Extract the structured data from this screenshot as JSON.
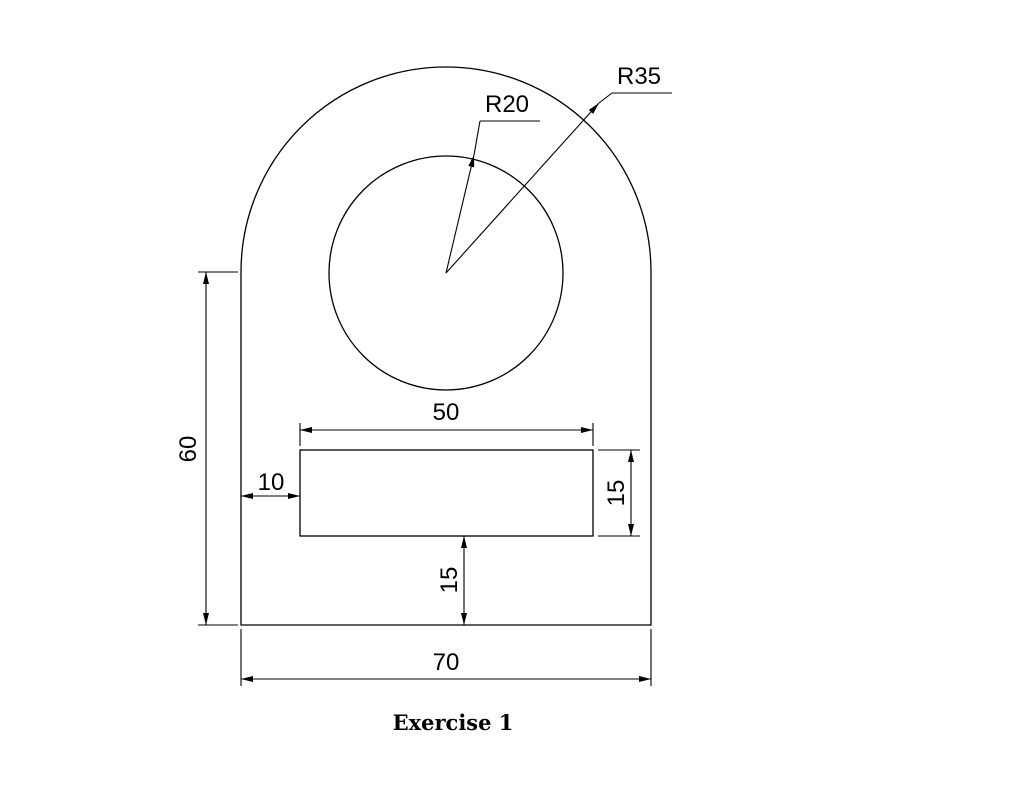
{
  "drawing": {
    "labels": {
      "outer_radius": "R35",
      "inner_radius": "R20",
      "slot_width": "50",
      "slot_height": "15",
      "slot_offset_left": "10",
      "slot_offset_bottom": "15",
      "overall_height": "60",
      "overall_width": "70"
    },
    "line_color": "#000000"
  },
  "caption": "Exercise 1"
}
